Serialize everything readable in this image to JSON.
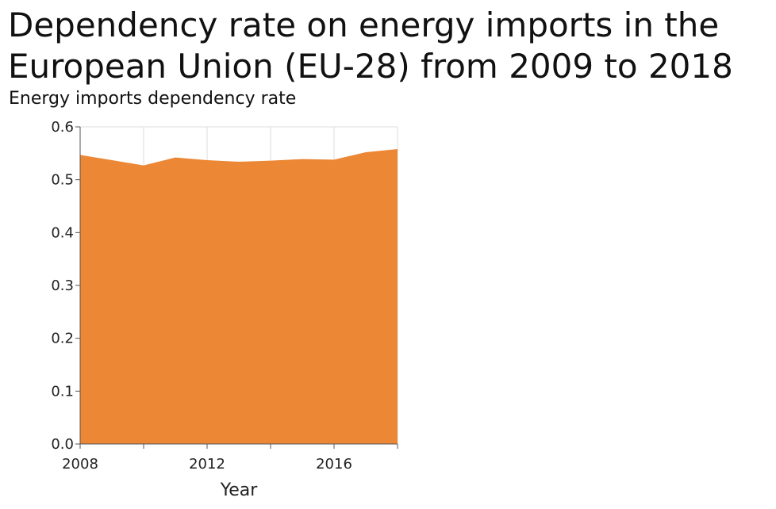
{
  "chart_data": {
    "type": "area",
    "title": "Dependency rate on energy imports in the European Union (EU-28) from 2009 to 2018",
    "subtitle": "Energy imports dependency rate",
    "xlabel": "Year",
    "ylabel": "",
    "x": [
      2008,
      2009,
      2010,
      2011,
      2012,
      2013,
      2014,
      2015,
      2016,
      2017,
      2018
    ],
    "values": [
      0.547,
      0.537,
      0.527,
      0.542,
      0.537,
      0.534,
      0.536,
      0.539,
      0.538,
      0.552,
      0.558
    ],
    "xlim": [
      2008,
      2018
    ],
    "ylim": [
      0,
      0.6
    ],
    "x_ticks": [
      2008,
      2010,
      2012,
      2014,
      2016,
      2018
    ],
    "x_tick_labels": [
      "2008",
      "",
      "2012",
      "",
      "2016",
      ""
    ],
    "y_ticks": [
      0,
      0.1,
      0.2,
      0.3,
      0.4,
      0.5,
      0.6
    ],
    "y_tick_labels": [
      "0.0",
      "0.1",
      "0.2",
      "0.3",
      "0.4",
      "0.5",
      "0.6"
    ],
    "grid": true,
    "legend": "none",
    "colors": {
      "area": "#ec8735",
      "grid": "#dddddd",
      "axis": "#555555"
    }
  }
}
